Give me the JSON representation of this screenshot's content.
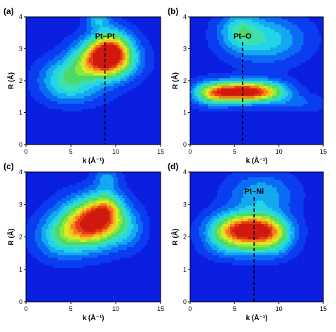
{
  "figure": {
    "colormap": [
      "#0a1fe0",
      "#0b3cf0",
      "#0a6cf5",
      "#14a8f0",
      "#22d4e8",
      "#3de0b0",
      "#4cd96a",
      "#8ae83a",
      "#d8ec28",
      "#f6c21e",
      "#f2801a",
      "#e63b14",
      "#d0190f"
    ],
    "background": "#ffffff"
  },
  "chart_data": [
    {
      "type": "heatmap",
      "panel_label": "(a)",
      "xlabel": "k (Å⁻¹)",
      "ylabel": "R (Å)",
      "xlim": [
        0,
        15
      ],
      "ylim": [
        0,
        4
      ],
      "xticks": [
        "0",
        "5",
        "10",
        "15"
      ],
      "yticks": [
        "0",
        "1",
        "2",
        "3",
        "4"
      ],
      "annotation": "Pt–Pt",
      "marker_k": 8.8,
      "peaks": [
        {
          "k": 8.8,
          "R": 2.65,
          "sk": 2.2,
          "sR": 0.42,
          "amp": 1.0
        },
        {
          "k": 9.5,
          "R": 3.1,
          "sk": 1.5,
          "sR": 0.4,
          "amp": 0.45
        },
        {
          "k": 4.5,
          "R": 2.1,
          "sk": 2.0,
          "sR": 0.4,
          "amp": 0.38
        },
        {
          "k": 8.0,
          "R": 3.9,
          "sk": 1.0,
          "sR": 0.2,
          "amp": 0.25
        },
        {
          "k": 5.5,
          "R": 1.6,
          "sk": 2.5,
          "sR": 0.3,
          "amp": 0.15
        }
      ]
    },
    {
      "type": "heatmap",
      "panel_label": "(b)",
      "xlabel": "k (Å⁻¹)",
      "ylabel": "R (Å)",
      "xlim": [
        0,
        15
      ],
      "ylim": [
        0,
        4
      ],
      "xticks": [
        "0",
        "5",
        "10",
        "15"
      ],
      "yticks": [
        "0",
        "1",
        "2",
        "3",
        "4"
      ],
      "annotation": "Pt–O",
      "marker_k": 5.9,
      "peaks": [
        {
          "k": 5.8,
          "R": 1.65,
          "sk": 2.3,
          "sR": 0.22,
          "amp": 1.0
        },
        {
          "k": 2.5,
          "R": 1.6,
          "sk": 1.6,
          "sR": 0.25,
          "amp": 0.5
        },
        {
          "k": 9.0,
          "R": 1.65,
          "sk": 1.8,
          "sR": 0.25,
          "amp": 0.35
        },
        {
          "k": 8.5,
          "R": 3.3,
          "sk": 3.0,
          "sR": 0.5,
          "amp": 0.35
        },
        {
          "k": 5.5,
          "R": 3.6,
          "sk": 1.5,
          "sR": 0.4,
          "amp": 0.28
        },
        {
          "k": 12.5,
          "R": 1.3,
          "sk": 2.0,
          "sR": 0.2,
          "amp": 0.12
        }
      ]
    },
    {
      "type": "heatmap",
      "panel_label": "(c)",
      "xlabel": "k (Å⁻¹)",
      "ylabel": "R (Å)",
      "xlim": [
        0,
        15
      ],
      "ylim": [
        0,
        4
      ],
      "xticks": [
        "0",
        "5",
        "10",
        "15"
      ],
      "yticks": [
        "0",
        "1",
        "2",
        "3",
        "4"
      ],
      "annotation": "",
      "marker_k": null,
      "peaks": [
        {
          "k": 7.5,
          "R": 2.45,
          "sk": 2.3,
          "sR": 0.5,
          "amp": 1.0
        },
        {
          "k": 9.0,
          "R": 2.9,
          "sk": 1.2,
          "sR": 0.35,
          "amp": 0.35
        },
        {
          "k": 4.0,
          "R": 2.0,
          "sk": 2.0,
          "sR": 0.45,
          "amp": 0.35
        },
        {
          "k": 9.0,
          "R": 3.8,
          "sk": 1.0,
          "sR": 0.25,
          "amp": 0.22
        },
        {
          "k": 11.5,
          "R": 2.2,
          "sk": 1.2,
          "sR": 0.4,
          "amp": 0.15
        }
      ]
    },
    {
      "type": "heatmap",
      "panel_label": "(d)",
      "xlabel": "k (Å⁻¹)",
      "ylabel": "R (Å)",
      "xlim": [
        0,
        15
      ],
      "ylim": [
        0,
        4
      ],
      "xticks": [
        "0",
        "5",
        "10",
        "15"
      ],
      "yticks": [
        "0",
        "1",
        "2",
        "3",
        "4"
      ],
      "annotation": "Pt–Ni",
      "marker_k": 7.2,
      "peaks": [
        {
          "k": 7.0,
          "R": 2.2,
          "sk": 2.3,
          "sR": 0.35,
          "amp": 1.0
        },
        {
          "k": 4.0,
          "R": 2.1,
          "sk": 1.8,
          "sR": 0.4,
          "amp": 0.35
        },
        {
          "k": 9.5,
          "R": 2.0,
          "sk": 1.5,
          "sR": 0.4,
          "amp": 0.3
        },
        {
          "k": 8.0,
          "R": 3.3,
          "sk": 2.5,
          "sR": 0.45,
          "amp": 0.28
        },
        {
          "k": 6.5,
          "R": 1.55,
          "sk": 2.5,
          "sR": 0.2,
          "amp": 0.12
        }
      ]
    }
  ]
}
